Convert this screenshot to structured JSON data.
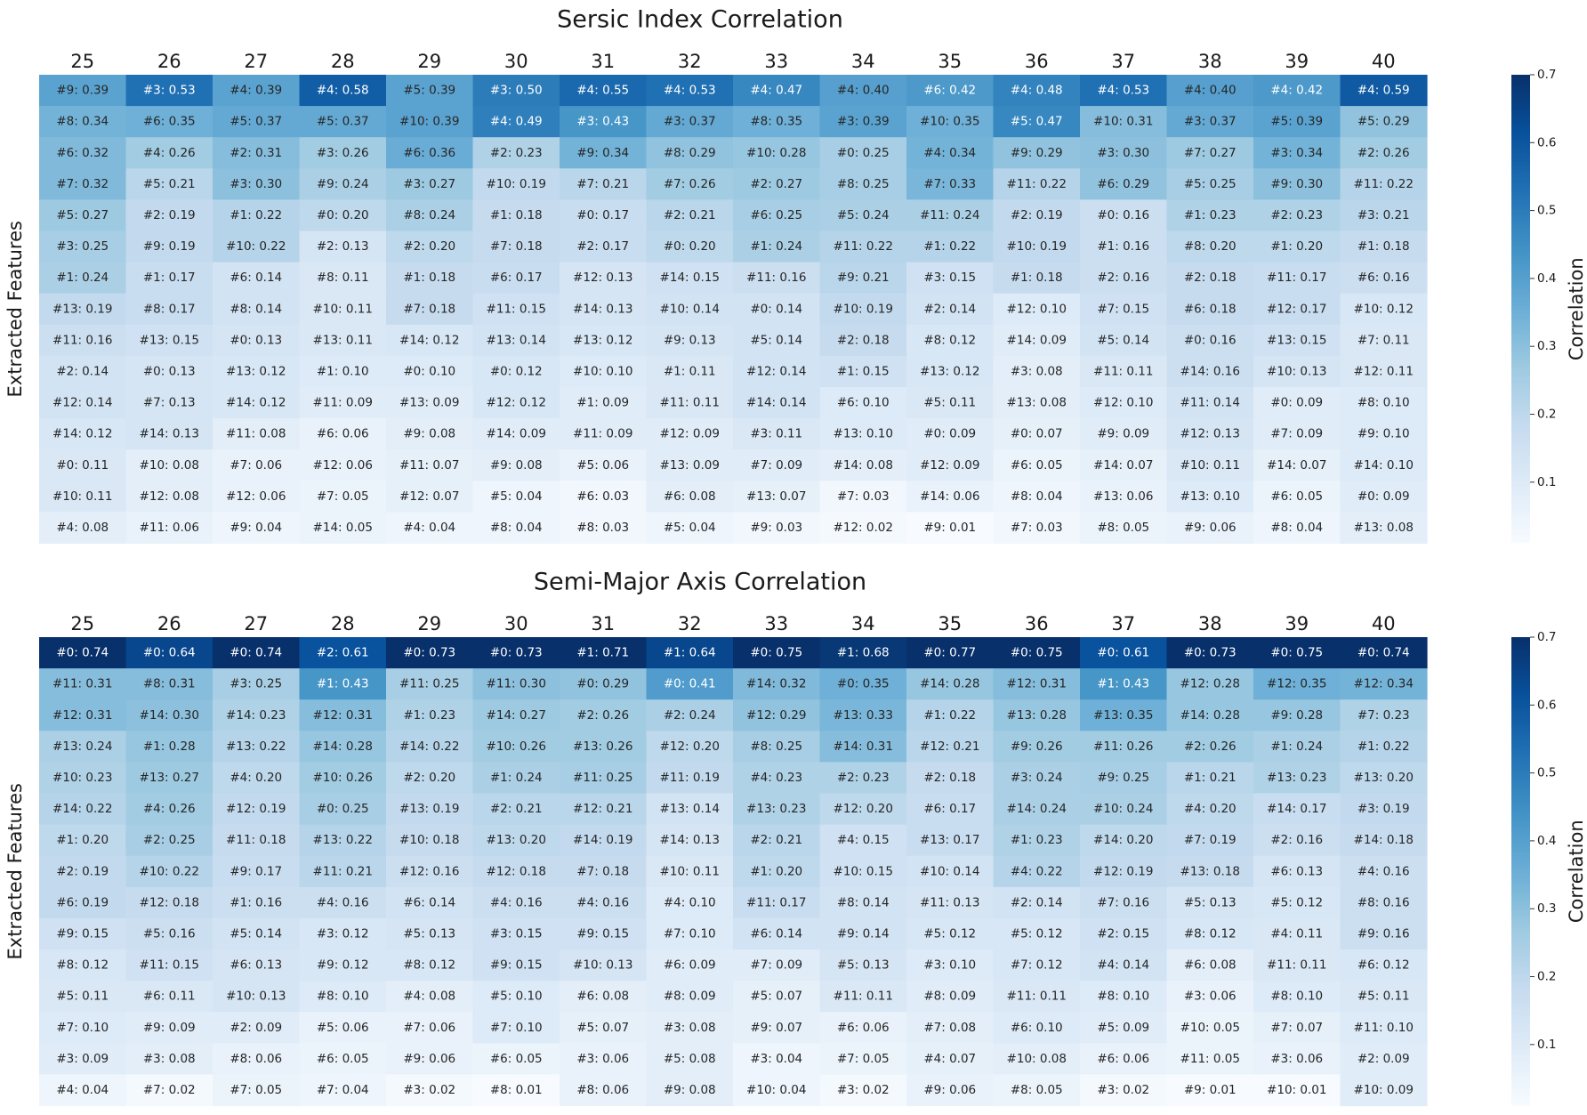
{
  "chart_data": [
    {
      "type": "heatmap",
      "title": "Sersic Index Correlation",
      "ylabel": "Extracted Features",
      "colorbar_label": "Correlation",
      "colorbar_range": [
        0.01,
        0.7
      ],
      "colorbar_ticks": [
        "0.1",
        "0.2",
        "0.3",
        "0.4",
        "0.5",
        "0.6",
        "0.7"
      ],
      "colormap": "Blues",
      "columns": [
        "25",
        "26",
        "27",
        "28",
        "29",
        "30",
        "31",
        "32",
        "33",
        "34",
        "35",
        "36",
        "37",
        "38",
        "39",
        "40"
      ],
      "cells": [
        [
          "#9: 0.39",
          "#3: 0.53",
          "#4: 0.39",
          "#4: 0.58",
          "#5: 0.39",
          "#3: 0.50",
          "#4: 0.55",
          "#4: 0.53",
          "#4: 0.47",
          "#4: 0.40",
          "#6: 0.42",
          "#4: 0.48",
          "#4: 0.53",
          "#4: 0.40",
          "#4: 0.42",
          "#4: 0.59"
        ],
        [
          "#8: 0.34",
          "#6: 0.35",
          "#5: 0.37",
          "#5: 0.37",
          "#10: 0.39",
          "#4: 0.49",
          "#3: 0.43",
          "#3: 0.37",
          "#8: 0.35",
          "#3: 0.39",
          "#10: 0.35",
          "#5: 0.47",
          "#10: 0.31",
          "#3: 0.37",
          "#5: 0.39",
          "#5: 0.29"
        ],
        [
          "#6: 0.32",
          "#4: 0.26",
          "#2: 0.31",
          "#3: 0.26",
          "#6: 0.36",
          "#2: 0.23",
          "#9: 0.34",
          "#8: 0.29",
          "#10: 0.28",
          "#0: 0.25",
          "#4: 0.34",
          "#9: 0.29",
          "#3: 0.30",
          "#7: 0.27",
          "#3: 0.34",
          "#2: 0.26"
        ],
        [
          "#7: 0.32",
          "#5: 0.21",
          "#3: 0.30",
          "#9: 0.24",
          "#3: 0.27",
          "#10: 0.19",
          "#7: 0.21",
          "#7: 0.26",
          "#2: 0.27",
          "#8: 0.25",
          "#7: 0.33",
          "#11: 0.22",
          "#6: 0.29",
          "#5: 0.25",
          "#9: 0.30",
          "#11: 0.22"
        ],
        [
          "#5: 0.27",
          "#2: 0.19",
          "#1: 0.22",
          "#0: 0.20",
          "#8: 0.24",
          "#1: 0.18",
          "#0: 0.17",
          "#2: 0.21",
          "#6: 0.25",
          "#5: 0.24",
          "#11: 0.24",
          "#2: 0.19",
          "#0: 0.16",
          "#1: 0.23",
          "#2: 0.23",
          "#3: 0.21"
        ],
        [
          "#3: 0.25",
          "#9: 0.19",
          "#10: 0.22",
          "#2: 0.13",
          "#2: 0.20",
          "#7: 0.18",
          "#2: 0.17",
          "#0: 0.20",
          "#1: 0.24",
          "#11: 0.22",
          "#1: 0.22",
          "#10: 0.19",
          "#1: 0.16",
          "#8: 0.20",
          "#1: 0.20",
          "#1: 0.18"
        ],
        [
          "#1: 0.24",
          "#1: 0.17",
          "#6: 0.14",
          "#8: 0.11",
          "#1: 0.18",
          "#6: 0.17",
          "#12: 0.13",
          "#14: 0.15",
          "#11: 0.16",
          "#9: 0.21",
          "#3: 0.15",
          "#1: 0.18",
          "#2: 0.16",
          "#2: 0.18",
          "#11: 0.17",
          "#6: 0.16"
        ],
        [
          "#13: 0.19",
          "#8: 0.17",
          "#8: 0.14",
          "#10: 0.11",
          "#7: 0.18",
          "#11: 0.15",
          "#14: 0.13",
          "#10: 0.14",
          "#0: 0.14",
          "#10: 0.19",
          "#2: 0.14",
          "#12: 0.10",
          "#7: 0.15",
          "#6: 0.18",
          "#12: 0.17",
          "#10: 0.12"
        ],
        [
          "#11: 0.16",
          "#13: 0.15",
          "#0: 0.13",
          "#13: 0.11",
          "#14: 0.12",
          "#13: 0.14",
          "#13: 0.12",
          "#9: 0.13",
          "#5: 0.14",
          "#2: 0.18",
          "#8: 0.12",
          "#14: 0.09",
          "#5: 0.14",
          "#0: 0.16",
          "#13: 0.15",
          "#7: 0.11"
        ],
        [
          "#2: 0.14",
          "#0: 0.13",
          "#13: 0.12",
          "#1: 0.10",
          "#0: 0.10",
          "#0: 0.12",
          "#10: 0.10",
          "#1: 0.11",
          "#12: 0.14",
          "#1: 0.15",
          "#13: 0.12",
          "#3: 0.08",
          "#11: 0.11",
          "#14: 0.16",
          "#10: 0.13",
          "#12: 0.11"
        ],
        [
          "#12: 0.14",
          "#7: 0.13",
          "#14: 0.12",
          "#11: 0.09",
          "#13: 0.09",
          "#12: 0.12",
          "#1: 0.09",
          "#11: 0.11",
          "#14: 0.14",
          "#6: 0.10",
          "#5: 0.11",
          "#13: 0.08",
          "#12: 0.10",
          "#11: 0.14",
          "#0: 0.09",
          "#8: 0.10"
        ],
        [
          "#14: 0.12",
          "#14: 0.13",
          "#11: 0.08",
          "#6: 0.06",
          "#9: 0.08",
          "#14: 0.09",
          "#11: 0.09",
          "#12: 0.09",
          "#3: 0.11",
          "#13: 0.10",
          "#0: 0.09",
          "#0: 0.07",
          "#9: 0.09",
          "#12: 0.13",
          "#7: 0.09",
          "#9: 0.10"
        ],
        [
          "#0: 0.11",
          "#10: 0.08",
          "#7: 0.06",
          "#12: 0.06",
          "#11: 0.07",
          "#9: 0.08",
          "#5: 0.06",
          "#13: 0.09",
          "#7: 0.09",
          "#14: 0.08",
          "#12: 0.09",
          "#6: 0.05",
          "#14: 0.07",
          "#10: 0.11",
          "#14: 0.07",
          "#14: 0.10"
        ],
        [
          "#10: 0.11",
          "#12: 0.08",
          "#12: 0.06",
          "#7: 0.05",
          "#12: 0.07",
          "#5: 0.04",
          "#6: 0.03",
          "#6: 0.08",
          "#13: 0.07",
          "#7: 0.03",
          "#14: 0.06",
          "#8: 0.04",
          "#13: 0.06",
          "#13: 0.10",
          "#6: 0.05",
          "#0: 0.09"
        ],
        [
          "#4: 0.08",
          "#11: 0.06",
          "#9: 0.04",
          "#14: 0.05",
          "#4: 0.04",
          "#8: 0.04",
          "#8: 0.03",
          "#5: 0.04",
          "#9: 0.03",
          "#12: 0.02",
          "#9: 0.01",
          "#7: 0.03",
          "#8: 0.05",
          "#9: 0.06",
          "#8: 0.04",
          "#13: 0.08"
        ]
      ]
    },
    {
      "type": "heatmap",
      "title": "Semi-Major Axis Correlation",
      "ylabel": "Extracted Features",
      "colorbar_label": "Correlation",
      "colorbar_range": [
        0.01,
        0.7
      ],
      "colorbar_ticks": [
        "0.1",
        "0.2",
        "0.3",
        "0.4",
        "0.5",
        "0.6",
        "0.7"
      ],
      "colormap": "Blues",
      "columns": [
        "25",
        "26",
        "27",
        "28",
        "29",
        "30",
        "31",
        "32",
        "33",
        "34",
        "35",
        "36",
        "37",
        "38",
        "39",
        "40"
      ],
      "cells": [
        [
          "#0: 0.74",
          "#0: 0.64",
          "#0: 0.74",
          "#2: 0.61",
          "#0: 0.73",
          "#0: 0.73",
          "#1: 0.71",
          "#1: 0.64",
          "#0: 0.75",
          "#1: 0.68",
          "#0: 0.77",
          "#0: 0.75",
          "#0: 0.61",
          "#0: 0.73",
          "#0: 0.75",
          "#0: 0.74"
        ],
        [
          "#11: 0.31",
          "#8: 0.31",
          "#3: 0.25",
          "#1: 0.43",
          "#11: 0.25",
          "#11: 0.30",
          "#0: 0.29",
          "#0: 0.41",
          "#14: 0.32",
          "#0: 0.35",
          "#14: 0.28",
          "#12: 0.31",
          "#1: 0.43",
          "#12: 0.28",
          "#12: 0.35",
          "#12: 0.34"
        ],
        [
          "#12: 0.31",
          "#14: 0.30",
          "#14: 0.23",
          "#12: 0.31",
          "#1: 0.23",
          "#14: 0.27",
          "#2: 0.26",
          "#2: 0.24",
          "#12: 0.29",
          "#13: 0.33",
          "#1: 0.22",
          "#13: 0.28",
          "#13: 0.35",
          "#14: 0.28",
          "#9: 0.28",
          "#7: 0.23"
        ],
        [
          "#13: 0.24",
          "#1: 0.28",
          "#13: 0.22",
          "#14: 0.28",
          "#14: 0.22",
          "#10: 0.26",
          "#13: 0.26",
          "#12: 0.20",
          "#8: 0.25",
          "#14: 0.31",
          "#12: 0.21",
          "#9: 0.26",
          "#11: 0.26",
          "#2: 0.26",
          "#1: 0.24",
          "#1: 0.22"
        ],
        [
          "#10: 0.23",
          "#13: 0.27",
          "#4: 0.20",
          "#10: 0.26",
          "#2: 0.20",
          "#1: 0.24",
          "#11: 0.25",
          "#11: 0.19",
          "#4: 0.23",
          "#2: 0.23",
          "#2: 0.18",
          "#3: 0.24",
          "#9: 0.25",
          "#1: 0.21",
          "#13: 0.23",
          "#13: 0.20"
        ],
        [
          "#14: 0.22",
          "#4: 0.26",
          "#12: 0.19",
          "#0: 0.25",
          "#13: 0.19",
          "#2: 0.21",
          "#12: 0.21",
          "#13: 0.14",
          "#13: 0.23",
          "#12: 0.20",
          "#6: 0.17",
          "#14: 0.24",
          "#10: 0.24",
          "#4: 0.20",
          "#14: 0.17",
          "#3: 0.19"
        ],
        [
          "#1: 0.20",
          "#2: 0.25",
          "#11: 0.18",
          "#13: 0.22",
          "#10: 0.18",
          "#13: 0.20",
          "#14: 0.19",
          "#14: 0.13",
          "#2: 0.21",
          "#4: 0.15",
          "#13: 0.17",
          "#1: 0.23",
          "#14: 0.20",
          "#7: 0.19",
          "#2: 0.16",
          "#14: 0.18"
        ],
        [
          "#2: 0.19",
          "#10: 0.22",
          "#9: 0.17",
          "#11: 0.21",
          "#12: 0.16",
          "#12: 0.18",
          "#7: 0.18",
          "#10: 0.11",
          "#1: 0.20",
          "#10: 0.15",
          "#10: 0.14",
          "#4: 0.22",
          "#12: 0.19",
          "#13: 0.18",
          "#6: 0.13",
          "#4: 0.16"
        ],
        [
          "#6: 0.19",
          "#12: 0.18",
          "#1: 0.16",
          "#4: 0.16",
          "#6: 0.14",
          "#4: 0.16",
          "#4: 0.16",
          "#4: 0.10",
          "#11: 0.17",
          "#8: 0.14",
          "#11: 0.13",
          "#2: 0.14",
          "#7: 0.16",
          "#5: 0.13",
          "#5: 0.12",
          "#8: 0.16"
        ],
        [
          "#9: 0.15",
          "#5: 0.16",
          "#5: 0.14",
          "#3: 0.12",
          "#5: 0.13",
          "#3: 0.15",
          "#9: 0.15",
          "#7: 0.10",
          "#6: 0.14",
          "#9: 0.14",
          "#5: 0.12",
          "#5: 0.12",
          "#2: 0.15",
          "#8: 0.12",
          "#4: 0.11",
          "#9: 0.16"
        ],
        [
          "#8: 0.12",
          "#11: 0.15",
          "#6: 0.13",
          "#9: 0.12",
          "#8: 0.12",
          "#9: 0.15",
          "#10: 0.13",
          "#6: 0.09",
          "#7: 0.09",
          "#5: 0.13",
          "#3: 0.10",
          "#7: 0.12",
          "#4: 0.14",
          "#6: 0.08",
          "#11: 0.11",
          "#6: 0.12"
        ],
        [
          "#5: 0.11",
          "#6: 0.11",
          "#10: 0.13",
          "#8: 0.10",
          "#4: 0.08",
          "#5: 0.10",
          "#6: 0.08",
          "#8: 0.09",
          "#5: 0.07",
          "#11: 0.11",
          "#8: 0.09",
          "#11: 0.11",
          "#8: 0.10",
          "#3: 0.06",
          "#8: 0.10",
          "#5: 0.11"
        ],
        [
          "#7: 0.10",
          "#9: 0.09",
          "#2: 0.09",
          "#5: 0.06",
          "#7: 0.06",
          "#7: 0.10",
          "#5: 0.07",
          "#3: 0.08",
          "#9: 0.07",
          "#6: 0.06",
          "#7: 0.08",
          "#6: 0.10",
          "#5: 0.09",
          "#10: 0.05",
          "#7: 0.07",
          "#11: 0.10"
        ],
        [
          "#3: 0.09",
          "#3: 0.08",
          "#8: 0.06",
          "#6: 0.05",
          "#9: 0.06",
          "#6: 0.05",
          "#3: 0.06",
          "#5: 0.08",
          "#3: 0.04",
          "#7: 0.05",
          "#4: 0.07",
          "#10: 0.08",
          "#6: 0.06",
          "#11: 0.05",
          "#3: 0.06",
          "#2: 0.09"
        ],
        [
          "#4: 0.04",
          "#7: 0.02",
          "#7: 0.05",
          "#7: 0.04",
          "#3: 0.02",
          "#8: 0.01",
          "#8: 0.06",
          "#9: 0.08",
          "#10: 0.04",
          "#3: 0.02",
          "#9: 0.06",
          "#8: 0.05",
          "#3: 0.02",
          "#9: 0.01",
          "#10: 0.01",
          "#10: 0.09"
        ]
      ]
    }
  ]
}
